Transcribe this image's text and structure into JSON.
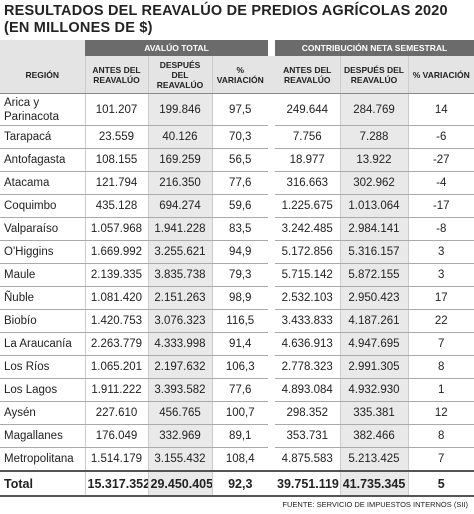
{
  "title": "RESULTADOS DEL REAVALÚO DE PREDIOS AGRÍCOLAS 2020",
  "subtitle": "(EN MILLONES DE $)",
  "group_headers": [
    "AVALÚO TOTAL",
    "CONTRIBUCIÓN NETA SEMESTRAL"
  ],
  "columns": [
    "REGIÓN",
    "ANTES DEL REAVALÚO",
    "DESPUÉS DEL REAVALÚO",
    "% VARIACIÓN",
    "ANTES DEL REAVALÚO",
    "DESPUÉS DEL REAVALÚO",
    "% VARIACIÓN"
  ],
  "rows": [
    [
      "Arica y Parinacota",
      "101.207",
      "199.846",
      "97,5",
      "249.644",
      "284.769",
      "14"
    ],
    [
      "Tarapacá",
      "23.559",
      "40.126",
      "70,3",
      "7.756",
      "7.288",
      "-6"
    ],
    [
      "Antofagasta",
      "108.155",
      "169.259",
      "56,5",
      "18.977",
      "13.922",
      "-27"
    ],
    [
      "Atacama",
      "121.794",
      "216.350",
      "77,6",
      "316.663",
      "302.962",
      "-4"
    ],
    [
      "Coquimbo",
      "435.128",
      "694.274",
      "59,6",
      "1.225.675",
      "1.013.064",
      "-17"
    ],
    [
      "Valparaíso",
      "1.057.968",
      "1.941.228",
      "83,5",
      "3.242.485",
      "2.984.141",
      "-8"
    ],
    [
      "O'Higgins",
      "1.669.992",
      "3.255.621",
      "94,9",
      "5.172.856",
      "5.316.157",
      "3"
    ],
    [
      "Maule",
      "2.139.335",
      "3.835.738",
      "79,3",
      "5.715.142",
      "5.872.155",
      "3"
    ],
    [
      "Ñuble",
      "1.081.420",
      "2.151.263",
      "98,9",
      "2.532.103",
      "2.950.423",
      "17"
    ],
    [
      "Biobío",
      "1.420.753",
      "3.076.323",
      "116,5",
      "3.433.833",
      "4.187.261",
      "22"
    ],
    [
      "La Araucanía",
      "2.263.779",
      "4.333.998",
      "91,4",
      "4.636.913",
      "4.947.695",
      "7"
    ],
    [
      "Los Ríos",
      "1.065.201",
      "2.197.632",
      "106,3",
      "2.778.323",
      "2.991.305",
      "8"
    ],
    [
      "Los Lagos",
      "1.911.222",
      "3.393.582",
      "77,6",
      "4.893.084",
      "4.932.930",
      "1"
    ],
    [
      "Aysén",
      "227.610",
      "456.765",
      "100,7",
      "298.352",
      "335.381",
      "12"
    ],
    [
      "Magallanes",
      "176.049",
      "332.969",
      "89,1",
      "353.731",
      "382.466",
      "8"
    ],
    [
      "Metropolitana",
      "1.514.179",
      "3.155.432",
      "108,4",
      "4.875.583",
      "5.213.425",
      "7"
    ]
  ],
  "total": [
    "Total",
    "15.317.352",
    "29.450.405",
    "92,3",
    "39.751.119",
    "41.735.345",
    "5"
  ],
  "source": "FUENTE: SERVICIO DE IMPUESTOS INTERNOS (SII)"
}
